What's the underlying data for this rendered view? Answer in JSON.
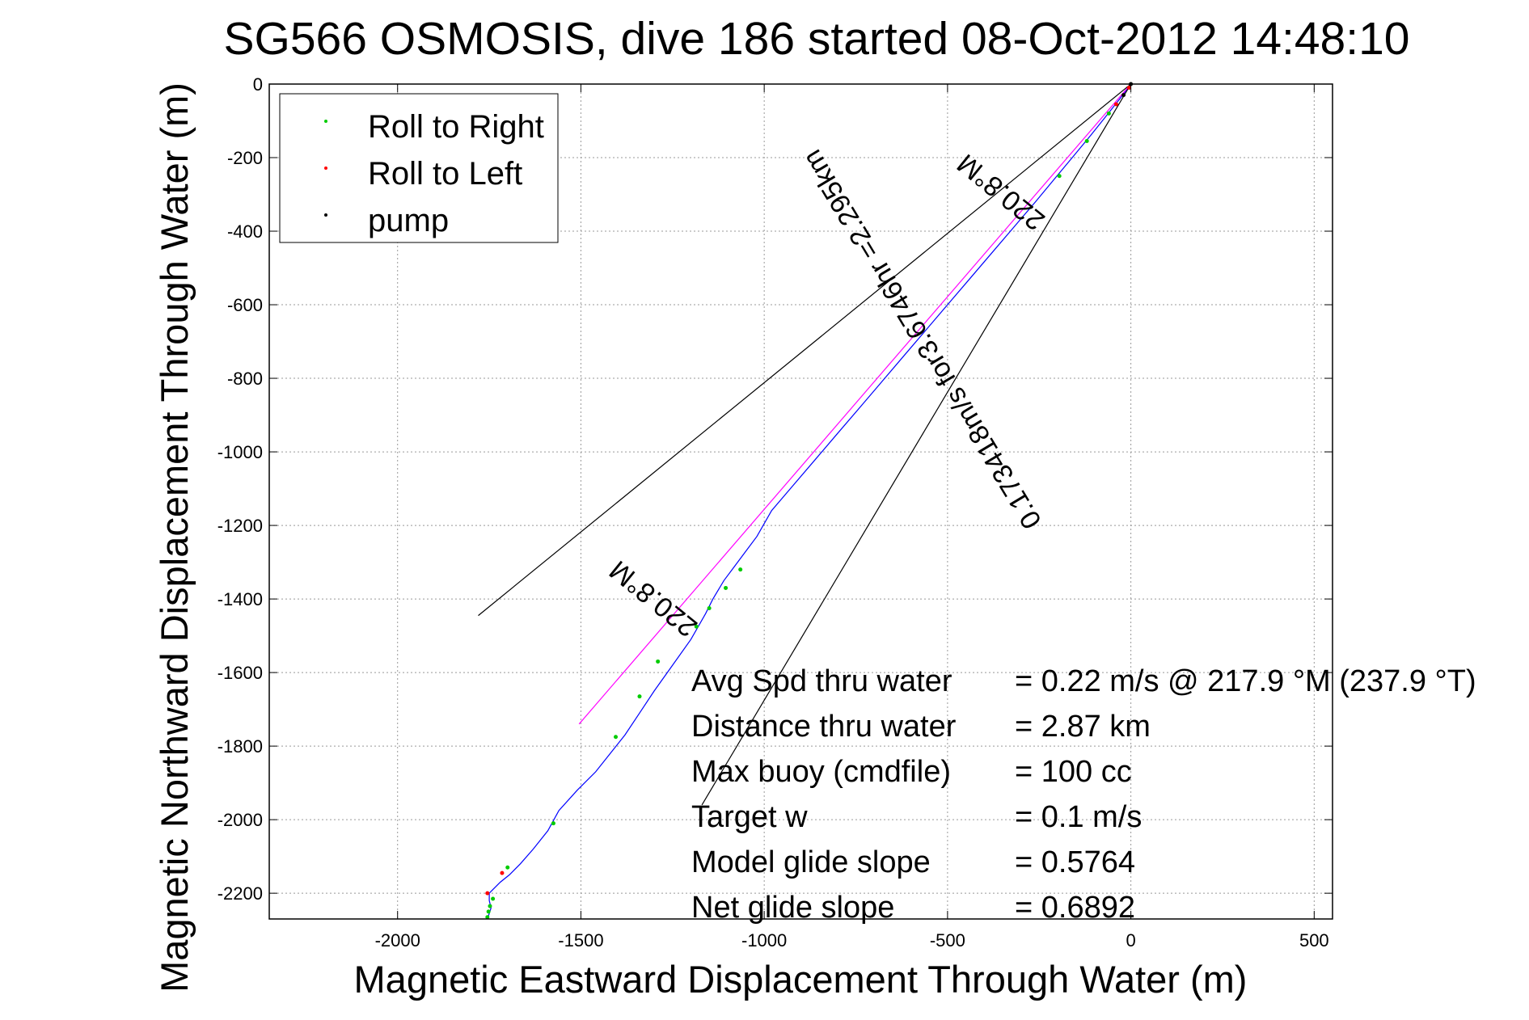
{
  "chart_data": {
    "type": "line",
    "title": "SG566 OSMOSIS, dive 186 started 08-Oct-2012 14:48:10",
    "xlabel": "Magnetic Eastward Displacement Through Water (m)",
    "ylabel": "Magnetic Northward Displacement Through Water (m)",
    "xlim": [
      -2350,
      550
    ],
    "ylim": [
      -2270,
      0
    ],
    "xticks": [
      -2000,
      -1500,
      -1000,
      -500,
      0,
      500
    ],
    "yticks": [
      0,
      -200,
      -400,
      -600,
      -800,
      -1000,
      -1200,
      -1400,
      -1600,
      -1800,
      -2000,
      -2200
    ],
    "grid": true,
    "legend_position": "top-left",
    "legend": [
      {
        "label": "Roll to Right",
        "color": "#00cc00"
      },
      {
        "label": "Roll to Left",
        "color": "#ff0000"
      },
      {
        "label": "pump",
        "color": "#000000"
      }
    ],
    "series": [
      {
        "kind": "track",
        "color": "#0000ff",
        "x": [
          0,
          -30,
          -70,
          -110,
          -160,
          -210,
          -260,
          -320,
          -380,
          -440,
          -500,
          -560,
          -620,
          -680,
          -740,
          -800,
          -860,
          -920,
          -980,
          -1020,
          -1050,
          -1080,
          -1110,
          -1140,
          -1160,
          -1200,
          -1250,
          -1300,
          -1340,
          -1380,
          -1420,
          -1460,
          -1510,
          -1560,
          -1590,
          -1630,
          -1665,
          -1695,
          -1720,
          -1740,
          -1750,
          -1750,
          -1745,
          -1750,
          -1755
        ],
        "y": [
          0,
          -40,
          -90,
          -140,
          -200,
          -260,
          -320,
          -390,
          -460,
          -530,
          -600,
          -670,
          -740,
          -810,
          -880,
          -950,
          -1020,
          -1090,
          -1160,
          -1230,
          -1270,
          -1310,
          -1350,
          -1400,
          -1440,
          -1510,
          -1580,
          -1650,
          -1710,
          -1770,
          -1820,
          -1870,
          -1920,
          -1975,
          -2030,
          -2080,
          -2120,
          -2150,
          -2170,
          -2190,
          -2200,
          -2220,
          -2240,
          -2255,
          -2270
        ]
      },
      {
        "kind": "vector",
        "color": "#ff00ff",
        "x": [
          0,
          -1505
        ],
        "y": [
          0,
          -1740
        ]
      },
      {
        "kind": "cone",
        "color": "#000000",
        "x": [
          0,
          -1780
        ],
        "y": [
          0,
          -1445
        ]
      },
      {
        "kind": "cone",
        "color": "#000000",
        "x": [
          0,
          -1170
        ],
        "y": [
          0,
          -1960
        ]
      },
      {
        "kind": "markers",
        "name": "Roll to Right",
        "color": "#00cc00",
        "x": [
          -60,
          -120,
          -195,
          -1065,
          -1105,
          -1150,
          -1185,
          -1290,
          -1340,
          -1405,
          -1575,
          -1700,
          -1740,
          -1748,
          -1752,
          -1755
        ],
        "y": [
          -80,
          -155,
          -250,
          -1320,
          -1370,
          -1425,
          -1475,
          -1570,
          -1665,
          -1775,
          -2010,
          -2130,
          -2215,
          -2235,
          -2250,
          -2265
        ]
      },
      {
        "kind": "markers",
        "name": "Roll to Left",
        "color": "#ff0000",
        "x": [
          -5,
          -40,
          -1715,
          -1755
        ],
        "y": [
          -10,
          -55,
          -2145,
          -2200
        ]
      },
      {
        "kind": "markers",
        "name": "pump",
        "color": "#000000",
        "x": [
          0,
          -20
        ],
        "y": [
          0,
          -30
        ]
      }
    ],
    "annotations": {
      "heading_label": "220.8°M",
      "track_label": "0.173418m/s for3.6746hr =2.295km"
    },
    "stats": [
      {
        "label": "Avg Spd thru water",
        "value": "=  0.22 m/s @ 217.9 °M (237.9 °T)"
      },
      {
        "label": "Distance thru water",
        "value": "=  2.87 km"
      },
      {
        "label": "Max buoy (cmdfile)",
        "value": "= 100 cc"
      },
      {
        "label": "Target w",
        "value": "= 0.1 m/s"
      },
      {
        "label": "Model glide slope",
        "value": "= 0.5764"
      },
      {
        "label": "Net glide slope",
        "value": "= 0.6892"
      }
    ]
  }
}
